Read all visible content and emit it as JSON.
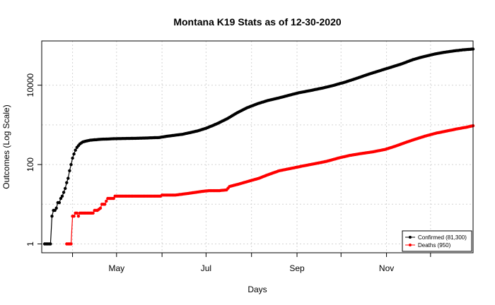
{
  "chart_data": {
    "type": "line",
    "title": "Montana K19 Stats as of 12-30-2020",
    "xlabel": "Days",
    "ylabel": "Outcomes (Log Scale)",
    "y_scale": "log",
    "grid": true,
    "legend_position": "bottom-right",
    "x_ticks": [
      {
        "label": "May",
        "date": "2020-05-01"
      },
      {
        "label": "Jul",
        "date": "2020-07-01"
      },
      {
        "label": "Sep",
        "date": "2020-09-01"
      },
      {
        "label": "Nov",
        "date": "2020-11-01"
      }
    ],
    "y_ticks": [
      {
        "label": "1",
        "value": 1
      },
      {
        "label": "100",
        "value": 100
      },
      {
        "label": "10000",
        "value": 10000
      }
    ],
    "xlim": [
      "2020-03-11",
      "2020-12-30"
    ],
    "ylim": [
      0.6,
      130000
    ],
    "series": [
      {
        "name": "Confirmed (81,300)",
        "color": "#000000",
        "points": [
          [
            "2020-03-13",
            1
          ],
          [
            "2020-03-14",
            1
          ],
          [
            "2020-03-15",
            1
          ],
          [
            "2020-03-16",
            1
          ],
          [
            "2020-03-17",
            1
          ],
          [
            "2020-03-18",
            5
          ],
          [
            "2020-03-19",
            7
          ],
          [
            "2020-03-20",
            7
          ],
          [
            "2020-03-21",
            8
          ],
          [
            "2020-03-22",
            11
          ],
          [
            "2020-03-23",
            11
          ],
          [
            "2020-03-24",
            14
          ],
          [
            "2020-03-25",
            16
          ],
          [
            "2020-03-26",
            20
          ],
          [
            "2020-03-27",
            25
          ],
          [
            "2020-03-28",
            35
          ],
          [
            "2020-03-29",
            45
          ],
          [
            "2020-03-30",
            70
          ],
          [
            "2020-03-31",
            100
          ],
          [
            "2020-04-01",
            145
          ],
          [
            "2020-04-02",
            185
          ],
          [
            "2020-04-03",
            230
          ],
          [
            "2020-04-04",
            270
          ],
          [
            "2020-04-05",
            300
          ],
          [
            "2020-04-06",
            330
          ],
          [
            "2020-04-07",
            350
          ],
          [
            "2020-04-08",
            370
          ],
          [
            "2020-04-09",
            380
          ],
          [
            "2020-04-11",
            395
          ],
          [
            "2020-04-13",
            410
          ],
          [
            "2020-04-16",
            420
          ],
          [
            "2020-04-20",
            433
          ],
          [
            "2020-04-25",
            440
          ],
          [
            "2020-05-01",
            450
          ],
          [
            "2020-05-10",
            455
          ],
          [
            "2020-05-20",
            465
          ],
          [
            "2020-05-30",
            480
          ],
          [
            "2020-06-05",
            520
          ],
          [
            "2020-06-15",
            580
          ],
          [
            "2020-06-25",
            700
          ],
          [
            "2020-07-01",
            820
          ],
          [
            "2020-07-08",
            1050
          ],
          [
            "2020-07-15",
            1400
          ],
          [
            "2020-07-22",
            2000
          ],
          [
            "2020-07-29",
            2700
          ],
          [
            "2020-08-05",
            3400
          ],
          [
            "2020-08-12",
            4100
          ],
          [
            "2020-08-19",
            4700
          ],
          [
            "2020-08-26",
            5500
          ],
          [
            "2020-09-02",
            6400
          ],
          [
            "2020-09-10",
            7300
          ],
          [
            "2020-09-18",
            8400
          ],
          [
            "2020-09-26",
            9900
          ],
          [
            "2020-10-04",
            12000
          ],
          [
            "2020-10-12",
            15000
          ],
          [
            "2020-10-20",
            19000
          ],
          [
            "2020-10-28",
            23500
          ],
          [
            "2020-11-05",
            29000
          ],
          [
            "2020-11-12",
            35000
          ],
          [
            "2020-11-19",
            44000
          ],
          [
            "2020-11-26",
            52000
          ],
          [
            "2020-12-03",
            60000
          ],
          [
            "2020-12-10",
            67000
          ],
          [
            "2020-12-17",
            73000
          ],
          [
            "2020-12-23",
            77500
          ],
          [
            "2020-12-30",
            81300
          ]
        ]
      },
      {
        "name": "Deaths (950)",
        "color": "#ff0000",
        "points": [
          [
            "2020-03-28",
            1
          ],
          [
            "2020-03-29",
            1
          ],
          [
            "2020-03-30",
            1
          ],
          [
            "2020-03-31",
            1
          ],
          [
            "2020-04-01",
            5
          ],
          [
            "2020-04-02",
            5
          ],
          [
            "2020-04-03",
            6
          ],
          [
            "2020-04-04",
            6
          ],
          [
            "2020-04-05",
            5
          ],
          [
            "2020-04-06",
            6
          ],
          [
            "2020-04-08",
            6
          ],
          [
            "2020-04-10",
            6
          ],
          [
            "2020-04-13",
            6
          ],
          [
            "2020-04-15",
            6
          ],
          [
            "2020-04-16",
            7
          ],
          [
            "2020-04-18",
            7
          ],
          [
            "2020-04-20",
            8
          ],
          [
            "2020-04-21",
            10
          ],
          [
            "2020-04-23",
            10
          ],
          [
            "2020-04-24",
            12
          ],
          [
            "2020-04-25",
            14
          ],
          [
            "2020-04-27",
            14
          ],
          [
            "2020-04-29",
            14
          ],
          [
            "2020-04-30",
            16
          ],
          [
            "2020-05-15",
            16
          ],
          [
            "2020-05-31",
            16
          ],
          [
            "2020-06-01",
            17
          ],
          [
            "2020-06-10",
            17
          ],
          [
            "2020-06-20",
            19
          ],
          [
            "2020-06-28",
            21
          ],
          [
            "2020-07-03",
            22
          ],
          [
            "2020-07-10",
            22
          ],
          [
            "2020-07-15",
            23
          ],
          [
            "2020-07-17",
            28
          ],
          [
            "2020-07-23",
            32
          ],
          [
            "2020-07-30",
            38
          ],
          [
            "2020-08-06",
            45
          ],
          [
            "2020-08-12",
            55
          ],
          [
            "2020-08-20",
            70
          ],
          [
            "2020-08-28",
            80
          ],
          [
            "2020-09-05",
            92
          ],
          [
            "2020-09-13",
            105
          ],
          [
            "2020-09-21",
            120
          ],
          [
            "2020-09-29",
            145
          ],
          [
            "2020-10-07",
            170
          ],
          [
            "2020-10-15",
            190
          ],
          [
            "2020-10-23",
            210
          ],
          [
            "2020-10-31",
            240
          ],
          [
            "2020-11-07",
            290
          ],
          [
            "2020-11-14",
            360
          ],
          [
            "2020-11-21",
            440
          ],
          [
            "2020-11-28",
            530
          ],
          [
            "2020-12-05",
            620
          ],
          [
            "2020-12-12",
            700
          ],
          [
            "2020-12-19",
            790
          ],
          [
            "2020-12-26",
            880
          ],
          [
            "2020-12-30",
            950
          ]
        ]
      }
    ]
  }
}
